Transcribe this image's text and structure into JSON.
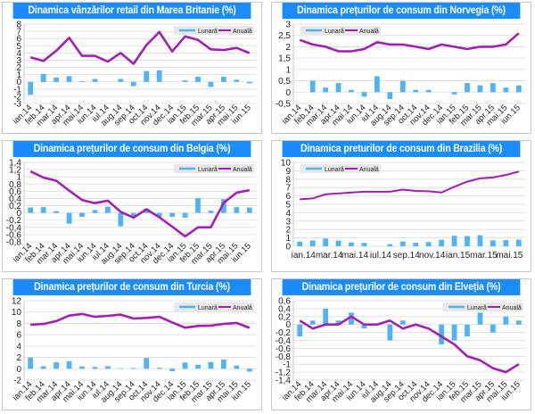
{
  "colors": {
    "header": "#1a8cff",
    "bar": "#4fb3f6",
    "line": "#a020b0",
    "grid": "#d9d9d9"
  },
  "legend_labels": {
    "monthly": "Lunară",
    "annual": "Anuală"
  },
  "chart_data": [
    {
      "type": "bar+line",
      "title": "Dinamica vânzărilor retail din Marea Britanie (%)",
      "categories": [
        "ian.14",
        "feb.14",
        "mar.14",
        "apr.14",
        "mai.14",
        "iun.14",
        "iul.14",
        "aug.14",
        "sep.14",
        "oct.14",
        "nov.14",
        "dec.14",
        "ian.15",
        "feb.15",
        "mar.15",
        "apr.15",
        "mai.15",
        "iun.15"
      ],
      "tick_labels": [
        "ian.14",
        "feb.14",
        "mar.14",
        "apr.14",
        "mai.14",
        "iun.14",
        "iul.14",
        "aug.14",
        "sep.14",
        "oct.14",
        "nov.14",
        "dec.14",
        "ian.15",
        "feb.15",
        "mar.15",
        "apr.15",
        "mai.15",
        "iun.15"
      ],
      "tick_rotated": true,
      "ylim": [
        -3,
        8
      ],
      "yticks": [
        "-3",
        "-2",
        "-1",
        "0",
        "1",
        "2",
        "3",
        "4",
        "5",
        "6",
        "7",
        "8"
      ],
      "legend_position": "top-right",
      "series": [
        {
          "name": "Lunară",
          "kind": "bar",
          "values": [
            -1.8,
            1.1,
            0.6,
            0.8,
            0.1,
            0.4,
            0.0,
            0.4,
            -0.6,
            1.5,
            1.6,
            0.0,
            0.2,
            0.7,
            -0.7,
            0.7,
            0.3,
            -0.2
          ]
        },
        {
          "name": "Anuală",
          "kind": "line",
          "values": [
            3.4,
            2.9,
            4.3,
            6.1,
            3.6,
            3.6,
            2.8,
            4.0,
            2.5,
            5.1,
            6.9,
            4.2,
            6.3,
            5.8,
            4.5,
            4.4,
            4.7,
            4.0
          ]
        }
      ]
    },
    {
      "type": "bar+line",
      "title": "Dinamica prețurilor de consum din Norvegia (%)",
      "categories": [
        "ian.14",
        "feb.14",
        "mar.14",
        "apr.14",
        "mai.14",
        "iun.14",
        "iul.14",
        "aug.14",
        "sep.14",
        "oct.14",
        "nov.14",
        "dec.14",
        "ian.15",
        "feb.15",
        "mar.15",
        "apr.15",
        "mai.15",
        "iun.15"
      ],
      "tick_labels": [
        "ian.14",
        "feb.14",
        "mar.14",
        "apr.14",
        "mai.14",
        "iun.14",
        "iul.14",
        "aug.14",
        "sep.14",
        "oct.14",
        "nov.14",
        "dec.14",
        "ian.15",
        "feb.15",
        "mar.15",
        "apr.15",
        "mai.15",
        "iun.15"
      ],
      "tick_rotated": true,
      "ylim": [
        -0.5,
        3
      ],
      "yticks": [
        "-0,5",
        "0",
        "0,5",
        "1",
        "1,5",
        "2",
        "2,5",
        "3"
      ],
      "legend_position": "top-left",
      "series": [
        {
          "name": "Lunară",
          "kind": "bar",
          "values": [
            0.0,
            0.5,
            0.2,
            0.4,
            0.1,
            -0.2,
            0.7,
            -0.3,
            0.5,
            0.1,
            0.1,
            0.0,
            -0.1,
            0.4,
            0.3,
            0.4,
            0.2,
            0.3
          ]
        },
        {
          "name": "Anuală",
          "kind": "line",
          "values": [
            2.3,
            2.1,
            2.0,
            1.8,
            1.8,
            1.9,
            2.2,
            2.1,
            2.1,
            2.0,
            1.9,
            2.1,
            2.0,
            1.9,
            2.0,
            2.0,
            2.1,
            2.6
          ]
        }
      ]
    },
    {
      "type": "bar+line",
      "title": "Dinamica prețurilor de consum din Belgia (%)",
      "categories": [
        "ian.14",
        "feb.14",
        "mar.14",
        "apr.14",
        "mai.14",
        "iun.14",
        "iul.14",
        "aug.14",
        "sep.14",
        "oct.14",
        "nov.14",
        "dec.14",
        "ian.15",
        "feb.15",
        "mar.15",
        "apr.15",
        "mai.15",
        "iun.15"
      ],
      "tick_labels": [
        "ian.14",
        "feb.14",
        "mar.14",
        "apr.14",
        "mai.14",
        "iun.14",
        "iul.14",
        "aug.14",
        "sep.14",
        "oct.14",
        "nov.14",
        "dec.14",
        "ian.15",
        "feb.15",
        "mar.15",
        "apr.15",
        "mai.15",
        "iun.15"
      ],
      "tick_rotated": true,
      "ylim": [
        -0.8,
        1.4
      ],
      "yticks": [
        "-0,8",
        "-0,6",
        "-0,4",
        "-0,2",
        "0",
        "0,2",
        "0,4",
        "0,6",
        "0,8",
        "1",
        "1,2",
        "1,4"
      ],
      "legend_position": "top-right",
      "series": [
        {
          "name": "Lunară",
          "kind": "bar",
          "values": [
            0.15,
            0.16,
            0.05,
            -0.3,
            -0.11,
            0.08,
            0.17,
            -0.37,
            -0.09,
            0.12,
            -0.11,
            -0.11,
            -0.13,
            0.41,
            0.06,
            0.38,
            0.16,
            0.15
          ]
        },
        {
          "name": "Anuală",
          "kind": "line",
          "values": [
            1.15,
            0.98,
            0.89,
            0.62,
            0.36,
            0.27,
            0.34,
            0.03,
            -0.13,
            0.1,
            -0.12,
            -0.38,
            -0.65,
            -0.4,
            -0.4,
            0.28,
            0.56,
            0.63
          ]
        }
      ]
    },
    {
      "type": "bar+line",
      "title": "Dinamica preturilor de consum din Brazilia (%)",
      "categories": [
        "ian.14",
        "feb.14",
        "mar.14",
        "apr.14",
        "mai.14",
        "iun.14",
        "iul.14",
        "aug.14",
        "sep.14",
        "oct.14",
        "nov.14",
        "dec.14",
        "ian.15",
        "feb.15",
        "mar.15",
        "apr.15",
        "mai.15",
        "iun.15"
      ],
      "tick_labels": [
        "ian.14",
        "",
        "mar.14",
        "",
        "mai.14",
        "",
        "iul.14",
        "",
        "sep.14",
        "",
        "nov.14",
        "",
        "ian.15",
        "",
        "mar.15",
        "",
        "mai.15",
        ""
      ],
      "tick_rotated": false,
      "ylim": [
        0,
        10
      ],
      "yticks": [
        "0",
        "1",
        "2",
        "3",
        "4",
        "5",
        "6",
        "7",
        "8",
        "9",
        "10"
      ],
      "legend_position": "top-left",
      "series": [
        {
          "name": "Lunară",
          "kind": "bar",
          "values": [
            0.55,
            0.69,
            0.92,
            0.67,
            0.46,
            0.4,
            0.01,
            0.25,
            0.57,
            0.42,
            0.51,
            0.78,
            1.24,
            1.22,
            1.32,
            0.71,
            0.74,
            0.79
          ]
        },
        {
          "name": "Anuală",
          "kind": "line",
          "values": [
            5.6,
            5.7,
            6.2,
            6.3,
            6.4,
            6.5,
            6.5,
            6.5,
            6.75,
            6.6,
            6.55,
            6.4,
            7.1,
            7.7,
            8.1,
            8.2,
            8.5,
            8.9
          ]
        }
      ]
    },
    {
      "type": "bar+line",
      "title": "Dinamica prețurilor de consum din Turcia (%)",
      "categories": [
        "ian.14",
        "feb.14",
        "mar.14",
        "apr.14",
        "mai.14",
        "iun.14",
        "iul.14",
        "aug.14",
        "sep.14",
        "oct.14",
        "nov.14",
        "dec.14",
        "ian.15",
        "feb.15",
        "mar.15",
        "apr.15",
        "mai.15",
        "iun.15"
      ],
      "tick_labels": [
        "ian.14",
        "feb.14",
        "mar.14",
        "apr.14",
        "mai.14",
        "iun.14",
        "iul.14",
        "aug.14",
        "sep.14",
        "oct.14",
        "nov.14",
        "dec.14",
        "ian.15",
        "feb.15",
        "mar.15",
        "apr.15",
        "mai.15",
        "iun.15"
      ],
      "tick_rotated": true,
      "ylim": [
        -2,
        12
      ],
      "yticks": [
        "-2",
        "0",
        "2",
        "4",
        "6",
        "8",
        "10",
        "12"
      ],
      "legend_position": "top-right",
      "series": [
        {
          "name": "Lunară",
          "kind": "bar",
          "values": [
            1.98,
            0.43,
            1.13,
            1.34,
            0.4,
            0.31,
            0.45,
            0.09,
            0.14,
            1.9,
            0.18,
            -0.44,
            1.1,
            0.71,
            1.19,
            1.63,
            0.56,
            -0.51
          ]
        },
        {
          "name": "Anuală",
          "kind": "line",
          "values": [
            7.75,
            7.89,
            8.39,
            9.38,
            9.66,
            9.16,
            9.32,
            9.54,
            8.86,
            8.96,
            9.15,
            8.17,
            7.24,
            7.55,
            7.61,
            7.91,
            8.09,
            7.2
          ]
        }
      ]
    },
    {
      "type": "bar+line",
      "title": "Dinamica prețurilor de consum din Elveția (%)",
      "categories": [
        "ian.14",
        "feb.14",
        "mar.14",
        "apr.14",
        "mai.14",
        "iun.14",
        "iul.14",
        "aug.14",
        "sep.14",
        "oct.14",
        "nov.14",
        "dec.14",
        "ian.15",
        "feb.15",
        "mar.15",
        "apr.15",
        "mai.15",
        "iun.15"
      ],
      "tick_labels": [
        "ian.14",
        "feb.14",
        "mar.14",
        "apr.14",
        "mai.14",
        "iun.14",
        "iul.14",
        "aug.14",
        "sep.14",
        "oct.14",
        "nov.14",
        "dec.14",
        "ian.15",
        "feb.15",
        "mar.15",
        "apr.15",
        "mai.15",
        "iun.15"
      ],
      "tick_rotated": true,
      "ylim": [
        -1.4,
        0.6
      ],
      "yticks": [
        "-1,4",
        "-1,2",
        "-1",
        "-0,8",
        "-0,6",
        "-0,4",
        "-0,2",
        "0",
        "0,2",
        "0,4",
        "0,6"
      ],
      "legend_position": "top-right",
      "series": [
        {
          "name": "Lunară",
          "kind": "bar",
          "values": [
            -0.3,
            0.1,
            0.4,
            0.1,
            0.3,
            -0.1,
            0.0,
            -0.4,
            0.1,
            0.0,
            0.0,
            -0.5,
            -0.4,
            -0.3,
            0.3,
            -0.2,
            0.2,
            0.1
          ]
        },
        {
          "name": "Anuală",
          "kind": "line",
          "values": [
            0.1,
            -0.1,
            0.0,
            0.0,
            0.2,
            0.0,
            0.0,
            0.1,
            -0.1,
            0.0,
            -0.1,
            -0.3,
            -0.5,
            -0.8,
            -0.9,
            -1.1,
            -1.2,
            -1.0
          ]
        }
      ]
    }
  ]
}
